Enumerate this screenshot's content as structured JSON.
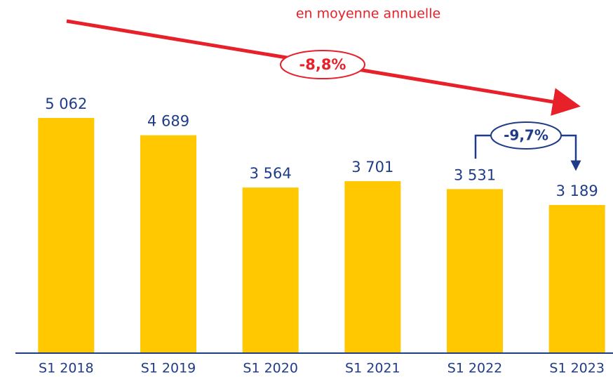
{
  "chart_data": {
    "type": "bar",
    "categories": [
      "S1 2018",
      "S1 2019",
      "S1 2020",
      "S1 2021",
      "S1 2022",
      "S1 2023"
    ],
    "values": [
      5062,
      4689,
      3564,
      3701,
      3531,
      3189
    ],
    "value_labels": [
      "5 062",
      "4 689",
      "3 564",
      "3 701",
      "3 531",
      "3 189"
    ],
    "color": "#ffc800",
    "annotations": [
      "en moyenne annuelle",
      "-8,8%",
      "-9,7%"
    ]
  }
}
